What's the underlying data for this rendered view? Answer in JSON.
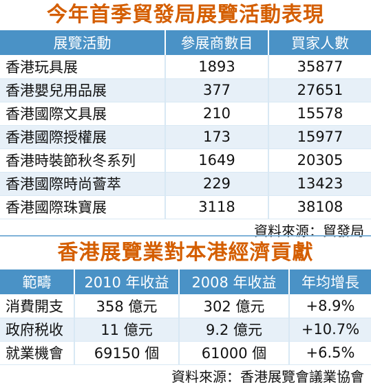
{
  "section1": {
    "title": "今年首季貿發局展覽活動表現",
    "headers": [
      "展覽活動",
      "參展商數目",
      "買家人數"
    ],
    "rows": [
      {
        "name": "香港玩具展",
        "exhibitors": "1893",
        "buyers": "35877"
      },
      {
        "name": "香港嬰兒用品展",
        "exhibitors": "377",
        "buyers": "27651"
      },
      {
        "name": "香港國際文具展",
        "exhibitors": "210",
        "buyers": "15578"
      },
      {
        "name": "香港國際授權展",
        "exhibitors": "173",
        "buyers": "15977"
      },
      {
        "name": "香港時裝節秋冬系列",
        "exhibitors": "1649",
        "buyers": "20305"
      },
      {
        "name": "香港國際時尚薈萃",
        "exhibitors": "229",
        "buyers": "13423"
      },
      {
        "name": "香港國際珠寶展",
        "exhibitors": "3118",
        "buyers": "38108"
      }
    ],
    "source": "資料來源：貿發局"
  },
  "section2": {
    "title": "香港展覽業對本港經濟貢獻",
    "headers": [
      "範疇",
      "2010 年收益",
      "2008 年收益",
      "年均增長"
    ],
    "rows": [
      {
        "name": "消費開支",
        "y2010": "358 億元",
        "y2008": "302 億元",
        "growth": "+8.9%"
      },
      {
        "name": "政府税收",
        "y2010": "11 億元",
        "y2008": "9.2 億元",
        "growth": "+10.7%"
      },
      {
        "name": "就業機會",
        "y2010": "69150 個",
        "y2008": "61000 個",
        "growth": "+6.5%"
      }
    ],
    "source": "資料來源：香港展覽會議業協會"
  },
  "colors": {
    "title": "#d45e00",
    "header_bg": "#4a92c6",
    "stripe": "#e7f0f8"
  }
}
